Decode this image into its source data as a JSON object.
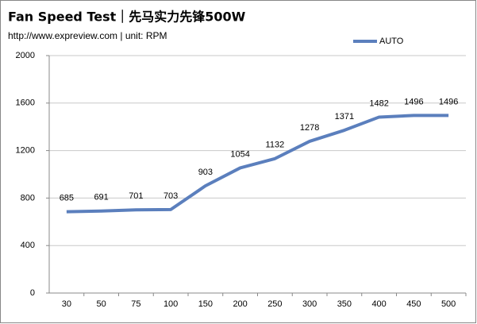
{
  "chart_data": {
    "type": "line",
    "title": "Fan Speed  Test｜先马实力先锋500W",
    "subtitle": "http://www.expreview.com | unit: RPM",
    "categories": [
      "30",
      "50",
      "75",
      "100",
      "150",
      "200",
      "250",
      "300",
      "350",
      "400",
      "450",
      "500"
    ],
    "series": [
      {
        "name": "AUTO",
        "color": "#5b7fbd",
        "values": [
          685,
          691,
          701,
          703,
          903,
          1054,
          1132,
          1278,
          1371,
          1482,
          1496,
          1496
        ]
      }
    ],
    "ylim": [
      0,
      2000
    ],
    "yticks": [
      0,
      400,
      800,
      1200,
      1600,
      2000
    ],
    "grid": true,
    "legend": "top-right"
  }
}
